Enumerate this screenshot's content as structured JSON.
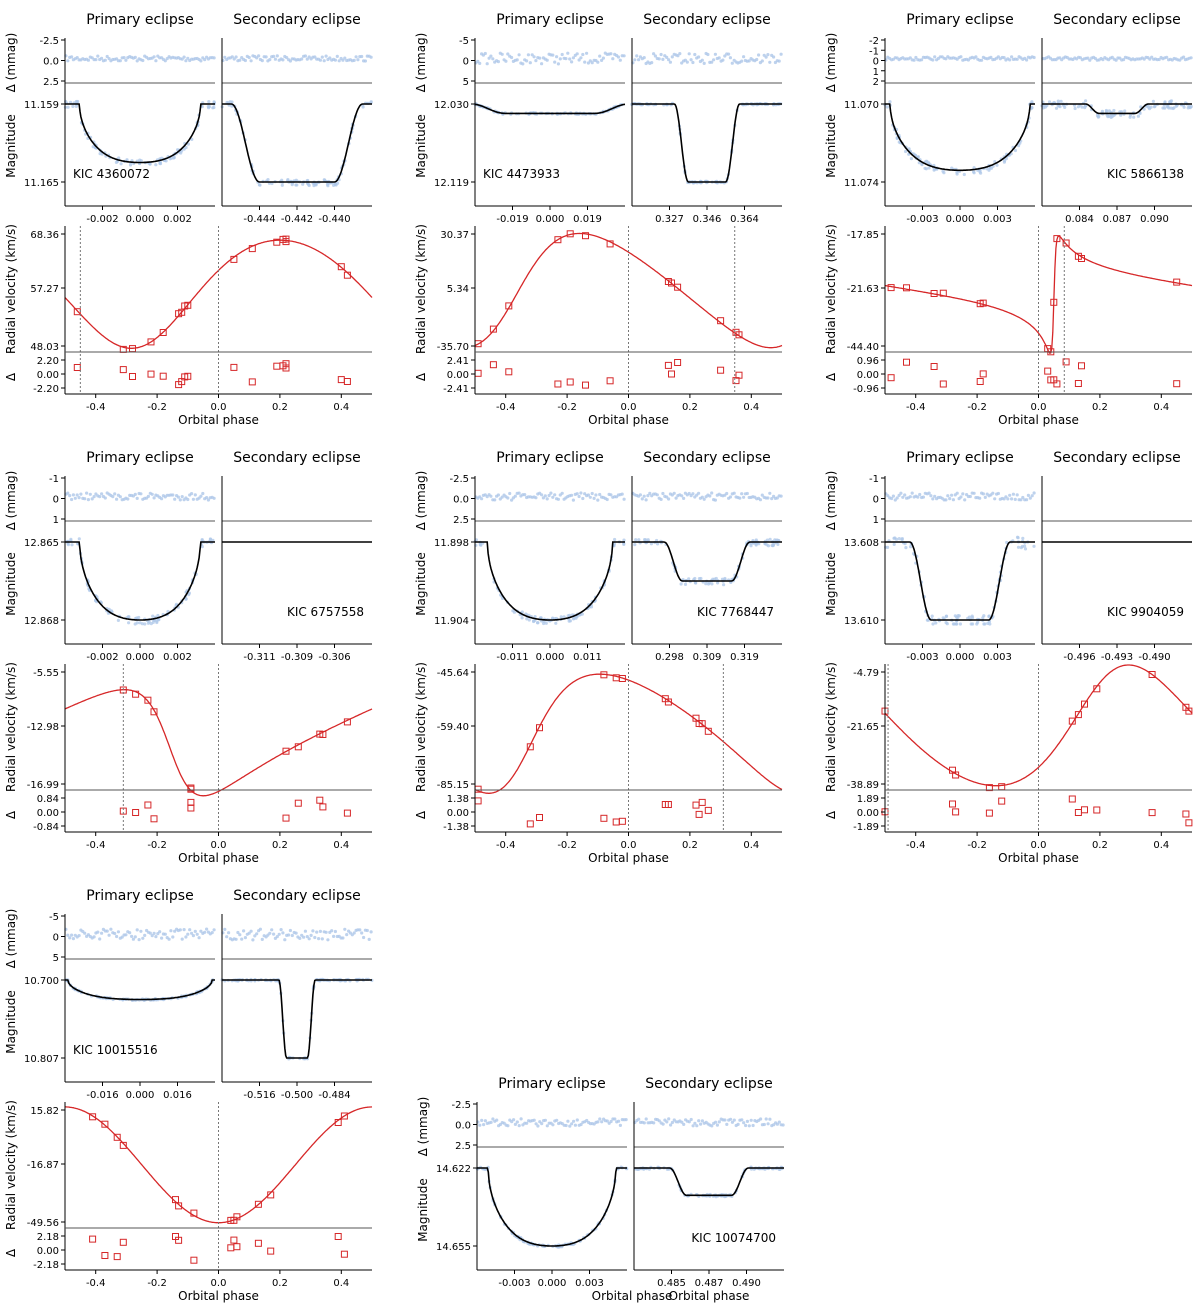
{
  "figure": {
    "primary_title": "Primary eclipse",
    "secondary_title": "Secondary eclipse",
    "resid_mag_label": "Δ (mmag)",
    "mag_label": "Magnitude",
    "rv_label": "Radial velocity (km/s)",
    "rv_resid_label": "Δ",
    "x_label": "Orbital phase"
  },
  "colors": {
    "photometry": "#aec7e8",
    "model": "#000000",
    "rv": "#d62728",
    "axis": "#000000"
  },
  "chart_data": [
    {
      "type": "line",
      "star": "KIC 4360072",
      "phot": {
        "primary": {
          "xlim": [
            -0.0031,
            0.0031
          ],
          "xticks": [
            "-0.002",
            "0.000",
            "0.002"
          ],
          "ingress": 0.002,
          "depth": 0.75,
          "shape": "u"
        },
        "secondary": {
          "xlim": [
            -0.4454,
            -0.4394
          ],
          "xticks": [
            "-0.444",
            "-0.442",
            "-0.440"
          ],
          "ingress": 0.0025,
          "depth": 1.0,
          "shape": "flat"
        },
        "mag_ticks": [
          "11.159",
          "11.165"
        ],
        "resid_ticks": [
          "-2.5",
          "0.0",
          "2.5"
        ],
        "scatter": 0.08,
        "resid_amp": 0.15
      },
      "rv": {
        "yticks": [
          "68.36",
          "57.27",
          "48.03"
        ],
        "resid_ticks": [
          "2.20",
          "0.00",
          "-2.20"
        ],
        "ylim": [
          46.0,
          70.0
        ],
        "K": 10.3,
        "gamma": 58.0,
        "e": 0.1,
        "w": 3.4,
        "T0": -0.25,
        "resid_amp": 2.2,
        "vlines": [
          -0.45,
          0.0
        ],
        "points": [
          -0.46,
          -0.31,
          -0.28,
          -0.22,
          -0.18,
          -0.13,
          -0.12,
          -0.11,
          -0.1,
          0.05,
          0.11,
          0.19,
          0.21,
          0.22,
          0.22,
          0.4,
          0.42
        ]
      }
    },
    {
      "type": "line",
      "star": "KIC 4473933",
      "phot": {
        "primary": {
          "xlim": [
            -0.03,
            0.03
          ],
          "xticks": [
            "-0.019",
            "0.000",
            "0.019"
          ],
          "ingress": 0.03,
          "depth": 0.12,
          "shape": "flat"
        },
        "secondary": {
          "xlim": [
            0.315,
            0.373
          ],
          "xticks": [
            "0.327",
            "0.346",
            "0.364"
          ],
          "ingress": 0.012,
          "depth": 1.0,
          "shape": "flat"
        },
        "mag_ticks": [
          "12.030",
          "12.119"
        ],
        "resid_ticks": [
          "-5",
          "0",
          "5"
        ],
        "scatter": 0.02,
        "resid_amp": 0.3
      },
      "rv": {
        "yticks": [
          "30.37",
          "5.34",
          "-35.70"
        ],
        "resid_ticks": [
          "2.41",
          "0.00",
          "-2.41"
        ],
        "ylim": [
          -41.0,
          34.0
        ],
        "K": 34.0,
        "gamma": -3.0,
        "e": 0.2,
        "w": 4.5,
        "T0": -0.38,
        "resid_amp": 2.4,
        "vlines": [
          0.0,
          0.346
        ],
        "points": [
          -0.49,
          -0.44,
          -0.39,
          -0.23,
          -0.19,
          -0.14,
          -0.06,
          0.13,
          0.14,
          0.16,
          0.3,
          0.35,
          0.36
        ]
      }
    },
    {
      "type": "line",
      "star": "KIC 5866138",
      "phot": {
        "primary": {
          "xlim": [
            -0.0047,
            0.0047
          ],
          "xticks": [
            "-0.003",
            "0.000",
            "0.003"
          ],
          "ingress": 0.0035,
          "depth": 0.85,
          "shape": "u"
        },
        "secondary": {
          "xlim": [
            0.0815,
            0.0915
          ],
          "xticks": [
            "0.084",
            "0.087",
            "0.090"
          ],
          "ingress": 0.002,
          "depth": 0.12,
          "shape": "flat"
        },
        "mag_ticks": [
          "11.070",
          "11.074"
        ],
        "resid_ticks": [
          "-2",
          "-1",
          "0",
          "1",
          "2"
        ],
        "scatter": 0.1,
        "resid_amp": 0.1
      },
      "rv": {
        "yticks": [
          "-17.85",
          "-21.63",
          "-44.40"
        ],
        "resid_ticks": [
          "0.96",
          "0.00",
          "-0.96"
        ],
        "ylim": [
          -45.5,
          -16.5
        ],
        "K": 13.5,
        "gamma": -31.0,
        "e": 0.87,
        "w": 4.6,
        "T0": 0.05,
        "resid_amp": 0.96,
        "vlines": [
          0.0,
          0.084
        ],
        "points": [
          -0.48,
          -0.43,
          -0.34,
          -0.31,
          -0.19,
          -0.18,
          0.03,
          0.04,
          0.05,
          0.06,
          0.09,
          0.13,
          0.14,
          0.45
        ]
      }
    },
    {
      "type": "line",
      "star": "KIC 6757558",
      "phot": {
        "primary": {
          "xlim": [
            -0.0028,
            0.0028
          ],
          "xticks": [
            "-0.002",
            "0.000",
            "0.002"
          ],
          "ingress": 0.0018,
          "depth": 1.0,
          "shape": "u"
        },
        "secondary": {
          "xlim": [
            -0.3125,
            -0.305
          ],
          "xticks": [
            "-0.311",
            "-0.309",
            "-0.306"
          ],
          "ingress": 0.0,
          "depth": 0.0,
          "shape": "none"
        },
        "mag_ticks": [
          "12.865",
          "12.868"
        ],
        "resid_ticks": [
          "-1",
          "0",
          "1"
        ],
        "scatter": 0.1,
        "resid_amp": 0.2
      },
      "rv": {
        "yticks": [
          "-5.55",
          "-12.98",
          "-16.99"
        ],
        "resid_ticks": [
          "0.84",
          "0.00",
          "-0.84"
        ],
        "ylim": [
          -17.9,
          -4.6
        ],
        "K": 5.6,
        "gamma": -12.4,
        "e": 0.4,
        "w": 1.8,
        "T0": -0.15,
        "resid_amp": 0.84,
        "vlines": [
          -0.31,
          0.0
        ],
        "points": [
          -0.31,
          -0.27,
          -0.23,
          -0.21,
          -0.09,
          -0.09,
          0.22,
          0.26,
          0.33,
          0.34,
          0.42
        ]
      }
    },
    {
      "type": "line",
      "star": "KIC 7768447",
      "phot": {
        "primary": {
          "xlim": [
            -0.0165,
            0.0165
          ],
          "xticks": [
            "-0.011",
            "0.000",
            "0.011"
          ],
          "ingress": 0.011,
          "depth": 1.0,
          "shape": "u"
        },
        "secondary": {
          "xlim": [
            0.292,
            0.325
          ],
          "xticks": [
            "0.298",
            "0.309",
            "0.319"
          ],
          "ingress": 0.009,
          "depth": 0.5,
          "shape": "flat"
        },
        "mag_ticks": [
          "11.898",
          "11.904"
        ],
        "resid_ticks": [
          "-2.5",
          "0.0",
          "2.5"
        ],
        "scatter": 0.08,
        "resid_amp": 0.2
      },
      "rv": {
        "yticks": [
          "-45.64",
          "-59.40",
          "-85.15"
        ],
        "resid_ticks": [
          "1.38",
          "0.00",
          "-1.38"
        ],
        "ylim": [
          -87.0,
          -43.0
        ],
        "K": 20.8,
        "gamma": -64.8,
        "e": 0.25,
        "w": 4.2,
        "T0": -0.35,
        "resid_amp": 1.38,
        "vlines": [
          0.0,
          0.309
        ],
        "points": [
          -0.49,
          -0.32,
          -0.29,
          -0.08,
          -0.04,
          -0.02,
          0.12,
          0.13,
          0.22,
          0.23,
          0.24,
          0.26
        ]
      }
    },
    {
      "type": "line",
      "star": "KIC 9904059",
      "phot": {
        "primary": {
          "xlim": [
            -0.0047,
            0.0047
          ],
          "xticks": [
            "-0.003",
            "0.000",
            "0.003"
          ],
          "ingress": 0.003,
          "depth": 1.0,
          "shape": "flat"
        },
        "secondary": {
          "xlim": [
            -0.4985,
            -0.488
          ],
          "xticks": [
            "-0.496",
            "-0.493",
            "-0.490"
          ],
          "ingress": 0.0,
          "depth": 0.0,
          "shape": "none"
        },
        "mag_ticks": [
          "13.608",
          "13.610"
        ],
        "resid_ticks": [
          "-1",
          "0",
          "1"
        ],
        "scatter": 0.15,
        "resid_amp": 0.2
      },
      "rv": {
        "yticks": [
          "-4.79",
          "-21.65",
          "-38.89"
        ],
        "resid_ticks": [
          "1.89",
          "0.00",
          "-1.89"
        ],
        "ylim": [
          -39.9,
          1.0
        ],
        "K": 19.6,
        "gamma": -21.0,
        "e": 0.15,
        "w": 5.5,
        "T0": 0.2,
        "resid_amp": 1.89,
        "vlines": [
          -0.49,
          0.0
        ],
        "points": [
          -0.5,
          -0.28,
          -0.27,
          -0.16,
          -0.12,
          0.11,
          0.13,
          0.15,
          0.19,
          0.37,
          0.48,
          0.49
        ]
      }
    },
    {
      "type": "line",
      "star": "KIC 10015516",
      "phot": {
        "primary": {
          "xlim": [
            -0.026,
            0.026
          ],
          "xticks": [
            "-0.016",
            "0.000",
            "0.016"
          ],
          "ingress": 0.02,
          "depth": 0.25,
          "shape": "u"
        },
        "secondary": {
          "xlim": [
            -0.526,
            -0.474
          ],
          "xticks": [
            "-0.516",
            "-0.500",
            "-0.484"
          ],
          "ingress": 0.006,
          "depth": 1.0,
          "shape": "flat"
        },
        "mag_ticks": [
          "10.700",
          "10.807"
        ],
        "resid_ticks": [
          "-5",
          "0",
          "5"
        ],
        "scatter": 0.02,
        "resid_amp": 0.3
      },
      "rv": {
        "yticks": [
          "15.82",
          "-16.87",
          "-49.56"
        ],
        "resid_ticks": [
          "2.18",
          "0.00",
          "-2.18"
        ],
        "ylim": [
          -54.0,
          20.0
        ],
        "K": 34.0,
        "gamma": -16.9,
        "e": 0.0,
        "w": 1.57,
        "T0": -0.25,
        "resid_amp": 2.18,
        "vlines": [
          0.0
        ],
        "points": [
          -0.41,
          -0.37,
          -0.33,
          -0.31,
          -0.14,
          -0.13,
          -0.08,
          0.04,
          0.05,
          0.06,
          0.13,
          0.17,
          0.39,
          0.41
        ]
      }
    },
    {
      "type": "line",
      "star": "KIC 10074700",
      "phot": {
        "primary": {
          "xlim": [
            -0.0047,
            0.0047
          ],
          "xticks": [
            "-0.003",
            "0.000",
            "0.003"
          ],
          "ingress": 0.0032,
          "depth": 1.0,
          "shape": "u"
        },
        "secondary": {
          "xlim": [
            0.4833,
            0.4913
          ],
          "xticks": [
            "0.485",
            "0.487",
            "0.490"
          ],
          "ingress": 0.002,
          "depth": 0.35,
          "shape": "flat"
        },
        "mag_ticks": [
          "14.622",
          "14.655"
        ],
        "resid_ticks": [
          "-2.5",
          "0.0",
          "2.5"
        ],
        "scatter": 0.03,
        "resid_amp": 0.2
      }
    }
  ]
}
